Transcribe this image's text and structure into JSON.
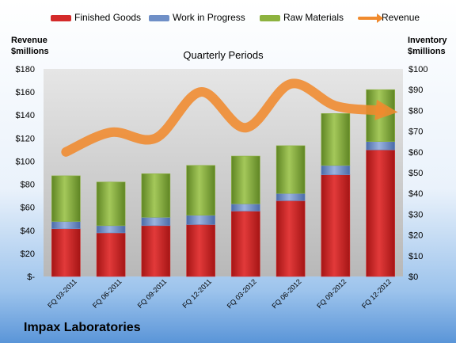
{
  "company": "Impax Laboratories",
  "subtitle": "Quarterly Periods",
  "left_axis_title": [
    "Revenue",
    "$millions"
  ],
  "right_axis_title": [
    "Inventory",
    "$millions"
  ],
  "colors": {
    "finished_goods": "#d42a2a",
    "work_in_progress": "#6f8fc7",
    "raw_materials": "#8db23f",
    "revenue": "#f08a2e"
  },
  "chart_data": {
    "type": "bar",
    "stacked": true,
    "categories": [
      "FQ 03-2011",
      "FQ 06-2011",
      "FQ 09-2011",
      "FQ 12-2011",
      "FQ 03-2012",
      "FQ 06-2012",
      "FQ 09-2012",
      "FQ 12-2012"
    ],
    "series": [
      {
        "name": "Finished Goods",
        "axis": "right",
        "values": [
          23,
          21,
          24.5,
          25,
          31.5,
          36.5,
          49,
          61
        ]
      },
      {
        "name": "Work in Progress",
        "axis": "right",
        "values": [
          3.5,
          3.5,
          4,
          4.5,
          3.5,
          3.5,
          4.5,
          4
        ]
      },
      {
        "name": "Raw Materials",
        "axis": "right",
        "values": [
          22,
          21,
          21,
          24,
          23,
          23,
          25,
          25
        ]
      },
      {
        "name": "Revenue",
        "axis": "left",
        "type": "line",
        "values": [
          108,
          125,
          120,
          160,
          129,
          167,
          148,
          144
        ]
      }
    ],
    "left_axis": {
      "title": "Revenue $millions",
      "min": 0,
      "max": 180,
      "step": 20,
      "tick_labels": [
        "$-",
        "$20",
        "$40",
        "$60",
        "$80",
        "$100",
        "$120",
        "$140",
        "$160",
        "$180"
      ]
    },
    "right_axis": {
      "title": "Inventory $millions",
      "min": 0,
      "max": 100,
      "step": 10,
      "tick_labels": [
        "$0",
        "$10",
        "$20",
        "$30",
        "$40",
        "$50",
        "$60",
        "$70",
        "$80",
        "$90",
        "$100"
      ]
    },
    "legend_position": "top",
    "grid": false
  }
}
